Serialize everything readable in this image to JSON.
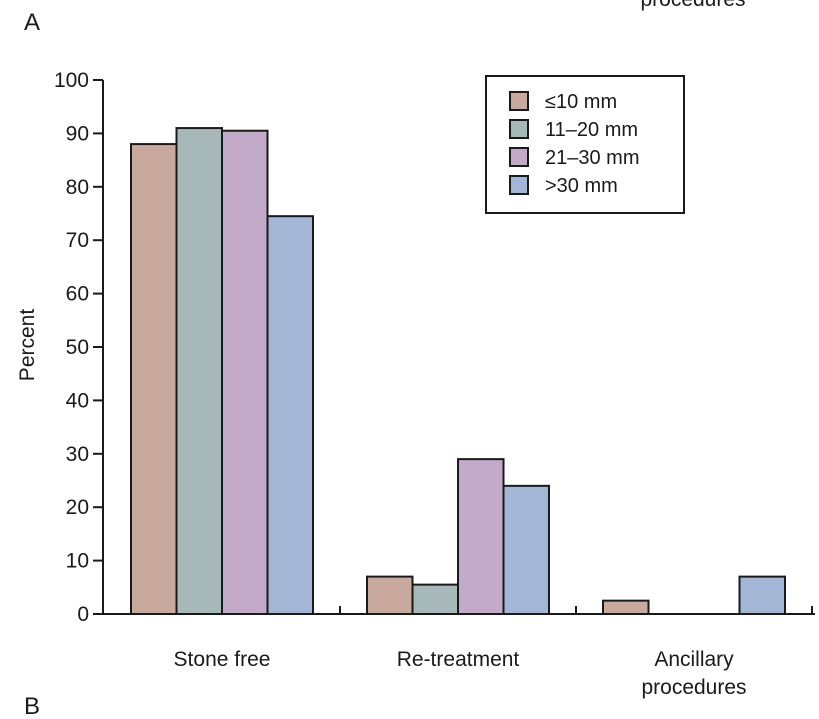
{
  "chart_data": {
    "type": "bar",
    "panel_label_top": "A",
    "panel_label_bottom": "B",
    "top_cutoff_text": "procedures",
    "ylabel": "Percent",
    "xlabel": "",
    "ylim": [
      0,
      100
    ],
    "yticks": [
      0,
      10,
      20,
      30,
      40,
      50,
      60,
      70,
      80,
      90,
      100
    ],
    "categories": [
      {
        "lines": [
          "Stone free"
        ]
      },
      {
        "lines": [
          "Re-treatment"
        ]
      },
      {
        "lines": [
          "Ancillary",
          "procedures"
        ]
      }
    ],
    "series": [
      {
        "name": "≤10 mm",
        "color": "#c9a89d",
        "values": [
          88,
          7,
          2.5
        ]
      },
      {
        "name": "11–20 mm",
        "color": "#a7b8b8",
        "values": [
          91,
          5.5,
          0
        ]
      },
      {
        "name": "21–30 mm",
        "color": "#c2aac8",
        "values": [
          90.5,
          29,
          0
        ]
      },
      {
        "name": ">30 mm",
        "color": "#a3b6d6",
        "values": [
          74.5,
          24,
          7
        ]
      }
    ],
    "legend_position": "top-right",
    "grid": false
  }
}
